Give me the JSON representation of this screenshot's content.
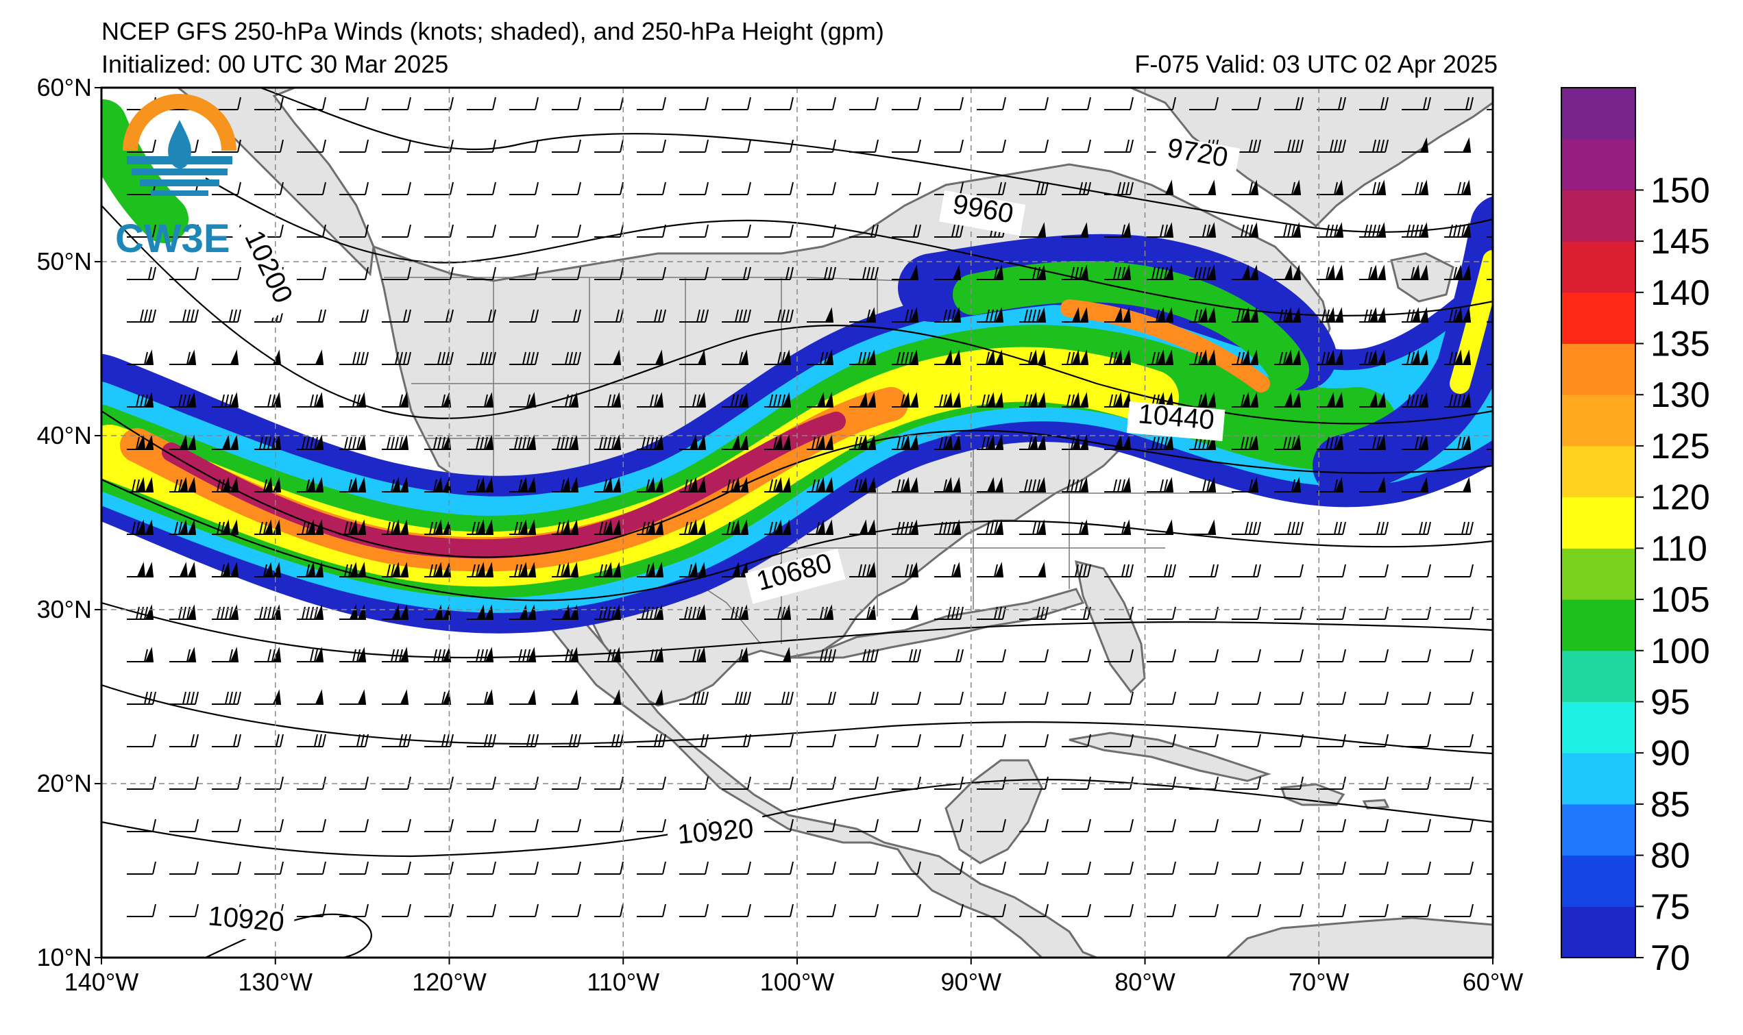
{
  "title": {
    "line1": "NCEP GFS 250-hPa Winds (knots; shaded), and 250-hPa Height (gpm)",
    "initialized": "Initialized: 00 UTC 30 Mar 2025",
    "valid": "F-075  Valid: 03 UTC 02 Apr 2025"
  },
  "logo": {
    "text": "CW3E",
    "icon": "cw3e-logo-icon"
  },
  "map": {
    "lon_range": [
      -140,
      -60
    ],
    "lat_range": [
      10,
      60
    ],
    "lon_ticks": [
      "140°W",
      "130°W",
      "120°W",
      "110°W",
      "100°W",
      "90°W",
      "80°W",
      "70°W",
      "60°W"
    ],
    "lat_ticks": [
      "60°N",
      "50°N",
      "40°N",
      "30°N",
      "20°N",
      "10°N"
    ],
    "gridlines": "dashed",
    "land_color": "#e3e3e3",
    "ocean_color": "#ffffff"
  },
  "height_contours": {
    "unit": "gpm",
    "labels": [
      "9720",
      "9960",
      "10200",
      "10440",
      "10680",
      "10920",
      "10920"
    ]
  },
  "colorbar": {
    "unit": "knots",
    "ticks": [
      "70",
      "75",
      "80",
      "85",
      "90",
      "95",
      "100",
      "105",
      "110",
      "120",
      "125",
      "130",
      "135",
      "140",
      "145",
      "150"
    ],
    "colors": [
      "#1e28c8",
      "#1446e6",
      "#1f78ff",
      "#1ec8ff",
      "#1ef0e6",
      "#1ed8a0",
      "#1ec01e",
      "#78d21e",
      "#ffff14",
      "#ffd21e",
      "#ffaa1e",
      "#ff8c1e",
      "#ff2814",
      "#dc1e32",
      "#b41e5a",
      "#961e82",
      "#78228c"
    ]
  }
}
